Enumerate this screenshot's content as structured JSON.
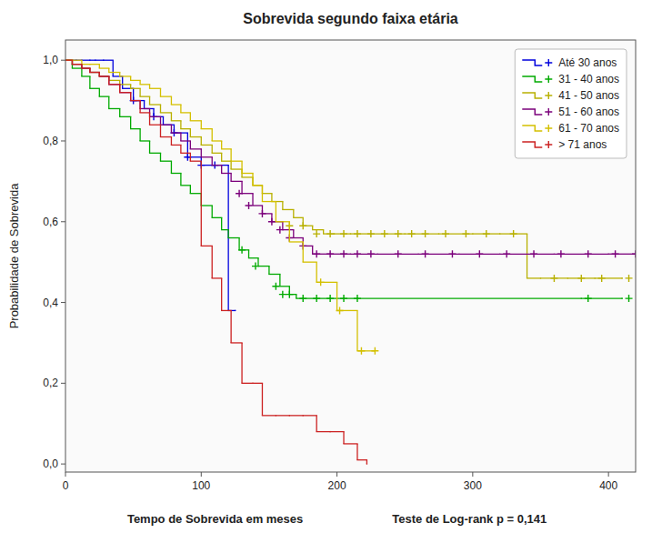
{
  "chart_data": {
    "type": "step",
    "title": "Sobrevida segundo faixa etária",
    "x_label": "Tempo de Sobrevida em meses",
    "y_label": "Probabilidade de Sobrevida",
    "annotation": "Teste de Log-rank p = 0,141",
    "xlim": [
      0,
      420
    ],
    "ylim": [
      -0.02,
      1.05
    ],
    "xticks": [
      0,
      100,
      200,
      300,
      400
    ],
    "yticks": [
      {
        "value": 0.0,
        "label": "0,0"
      },
      {
        "value": 0.2,
        "label": "0,2"
      },
      {
        "value": 0.4,
        "label": "0,4"
      },
      {
        "value": 0.6,
        "label": "0,6"
      },
      {
        "value": 0.8,
        "label": "0,8"
      },
      {
        "value": 1.0,
        "label": "1,0"
      }
    ],
    "grid": false,
    "legend": "upper right",
    "series": [
      {
        "name": "Até 30 anos",
        "color": "#0000dd",
        "marker": "plus",
        "x": [
          0,
          8,
          12,
          18,
          22,
          28,
          35,
          42,
          50,
          58,
          65,
          72,
          80,
          90,
          100,
          110,
          115,
          120,
          125
        ],
        "values": [
          1.0,
          1.0,
          1.0,
          1.0,
          1.0,
          1.0,
          0.96,
          0.93,
          0.9,
          0.88,
          0.86,
          0.84,
          0.82,
          0.76,
          0.74,
          0.74,
          0.74,
          0.38,
          0.38
        ],
        "censored_x": [
          50,
          65,
          80,
          90,
          100,
          110
        ],
        "censored_values": [
          0.9,
          0.86,
          0.82,
          0.76,
          0.74,
          0.74
        ]
      },
      {
        "name": "31 - 40 anos",
        "color": "#00aa00",
        "marker": "plus",
        "x": [
          0,
          5,
          12,
          18,
          25,
          32,
          40,
          48,
          55,
          62,
          70,
          78,
          85,
          92,
          100,
          108,
          115,
          120,
          128,
          135,
          142,
          150,
          158,
          165,
          170,
          175,
          185,
          195,
          205,
          215,
          380,
          410
        ],
        "values": [
          1.0,
          0.98,
          0.96,
          0.93,
          0.91,
          0.88,
          0.86,
          0.83,
          0.8,
          0.77,
          0.75,
          0.72,
          0.69,
          0.67,
          0.64,
          0.61,
          0.58,
          0.56,
          0.53,
          0.51,
          0.49,
          0.47,
          0.44,
          0.42,
          0.41,
          0.41,
          0.41,
          0.41,
          0.41,
          0.41,
          0.41,
          0.41
        ],
        "censored_x": [
          130,
          140,
          155,
          160,
          165,
          175,
          185,
          195,
          205,
          215,
          385,
          415
        ],
        "censored_values": [
          0.53,
          0.49,
          0.44,
          0.42,
          0.42,
          0.41,
          0.41,
          0.41,
          0.41,
          0.41,
          0.41,
          0.41
        ]
      },
      {
        "name": "41 - 50 anos",
        "color": "#b8b000",
        "marker": "plus",
        "x": [
          0,
          5,
          12,
          18,
          25,
          32,
          40,
          48,
          55,
          62,
          70,
          78,
          85,
          92,
          100,
          108,
          115,
          122,
          130,
          138,
          145,
          152,
          160,
          168,
          175,
          182,
          190,
          198,
          210,
          225,
          250,
          275,
          300,
          320,
          340,
          350,
          370,
          390,
          410
        ],
        "values": [
          1.0,
          0.99,
          0.98,
          0.97,
          0.96,
          0.95,
          0.94,
          0.93,
          0.91,
          0.89,
          0.87,
          0.85,
          0.83,
          0.81,
          0.79,
          0.77,
          0.75,
          0.73,
          0.71,
          0.69,
          0.67,
          0.65,
          0.63,
          0.61,
          0.59,
          0.58,
          0.57,
          0.57,
          0.57,
          0.57,
          0.57,
          0.57,
          0.57,
          0.57,
          0.46,
          0.46,
          0.46,
          0.46,
          0.46
        ],
        "censored_x": [
          165,
          175,
          185,
          195,
          205,
          215,
          225,
          235,
          245,
          255,
          265,
          280,
          295,
          310,
          330,
          360,
          380,
          395,
          415
        ],
        "censored_values": [
          0.59,
          0.59,
          0.57,
          0.57,
          0.57,
          0.57,
          0.57,
          0.57,
          0.57,
          0.57,
          0.57,
          0.57,
          0.57,
          0.57,
          0.57,
          0.46,
          0.46,
          0.46,
          0.46
        ]
      },
      {
        "name": "51 - 60 anos",
        "color": "#7b007b",
        "marker": "plus",
        "x": [
          0,
          5,
          12,
          18,
          25,
          32,
          40,
          48,
          55,
          62,
          70,
          78,
          85,
          92,
          100,
          108,
          115,
          122,
          130,
          138,
          145,
          152,
          160,
          168,
          175,
          182,
          195,
          210,
          230,
          260,
          290,
          320,
          360,
          400,
          420
        ],
        "values": [
          1.0,
          0.99,
          0.98,
          0.97,
          0.96,
          0.94,
          0.92,
          0.9,
          0.88,
          0.86,
          0.84,
          0.82,
          0.8,
          0.78,
          0.76,
          0.74,
          0.72,
          0.7,
          0.67,
          0.64,
          0.62,
          0.6,
          0.58,
          0.56,
          0.54,
          0.52,
          0.52,
          0.52,
          0.52,
          0.52,
          0.52,
          0.52,
          0.52,
          0.52,
          0.52
        ],
        "censored_x": [
          128,
          135,
          145,
          152,
          158,
          165,
          175,
          185,
          195,
          205,
          215,
          225,
          245,
          265,
          285,
          305,
          325,
          345,
          365,
          385,
          405,
          420
        ],
        "censored_values": [
          0.67,
          0.64,
          0.62,
          0.6,
          0.58,
          0.56,
          0.54,
          0.52,
          0.52,
          0.52,
          0.52,
          0.52,
          0.52,
          0.52,
          0.52,
          0.52,
          0.52,
          0.52,
          0.52,
          0.52,
          0.52,
          0.52
        ]
      },
      {
        "name": "61 - 70 anos",
        "color": "#d4c000",
        "marker": "plus",
        "x": [
          0,
          5,
          12,
          18,
          25,
          32,
          40,
          48,
          55,
          62,
          70,
          78,
          85,
          92,
          100,
          108,
          115,
          122,
          130,
          138,
          145,
          155,
          165,
          175,
          185,
          200,
          215,
          228
        ],
        "values": [
          1.0,
          1.0,
          0.99,
          0.99,
          0.98,
          0.97,
          0.96,
          0.95,
          0.94,
          0.93,
          0.91,
          0.89,
          0.87,
          0.85,
          0.83,
          0.8,
          0.78,
          0.75,
          0.72,
          0.69,
          0.65,
          0.6,
          0.55,
          0.5,
          0.45,
          0.38,
          0.28,
          0.28
        ],
        "censored_x": [
          188,
          202,
          218,
          228
        ],
        "censored_values": [
          0.45,
          0.38,
          0.28,
          0.28
        ]
      },
      {
        "name": "> 71 anos",
        "color": "#cc2222",
        "marker": "plus",
        "x": [
          0,
          5,
          12,
          18,
          25,
          32,
          40,
          48,
          55,
          62,
          70,
          78,
          85,
          92,
          100,
          108,
          115,
          122,
          130,
          138,
          145,
          155,
          165,
          175,
          185,
          195,
          205,
          215,
          222
        ],
        "values": [
          1.0,
          0.99,
          0.98,
          0.97,
          0.96,
          0.94,
          0.92,
          0.9,
          0.87,
          0.84,
          0.81,
          0.79,
          0.77,
          0.75,
          0.54,
          0.46,
          0.38,
          0.3,
          0.2,
          0.2,
          0.12,
          0.12,
          0.12,
          0.12,
          0.08,
          0.08,
          0.05,
          0.01,
          0.0
        ],
        "censored_x": [],
        "censored_values": []
      }
    ]
  }
}
